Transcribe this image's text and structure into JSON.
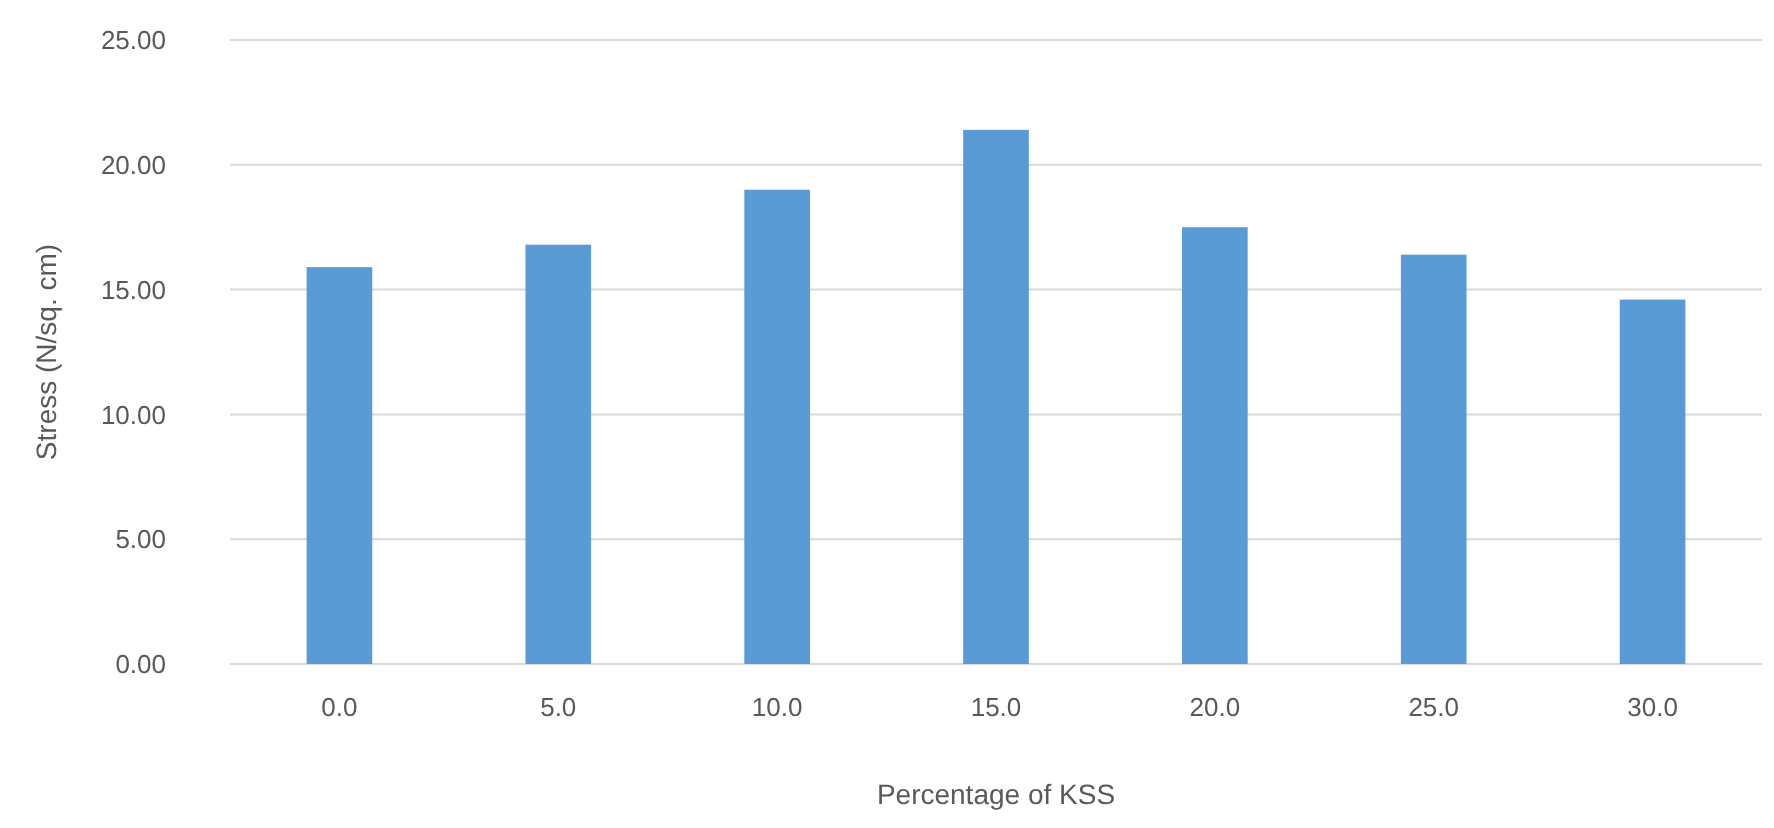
{
  "chart_data": {
    "type": "bar",
    "xlabel": "Percentage of KSS",
    "ylabel": "Stress (N/sq. cm)",
    "categories": [
      "0.0",
      "5.0",
      "10.0",
      "15.0",
      "20.0",
      "25.0",
      "30.0"
    ],
    "values": [
      15.9,
      16.8,
      19.0,
      21.4,
      17.5,
      16.4,
      14.6
    ],
    "color": "#5b9bd5",
    "ylim": [
      0,
      25
    ],
    "yticks": [
      {
        "value": 0,
        "label": "0.00"
      },
      {
        "value": 5,
        "label": "5.00"
      },
      {
        "value": 10,
        "label": "10.00"
      },
      {
        "value": 15,
        "label": "15.00"
      },
      {
        "value": 20,
        "label": "20.00"
      },
      {
        "value": 25,
        "label": "25.00"
      }
    ],
    "grid": "y"
  }
}
